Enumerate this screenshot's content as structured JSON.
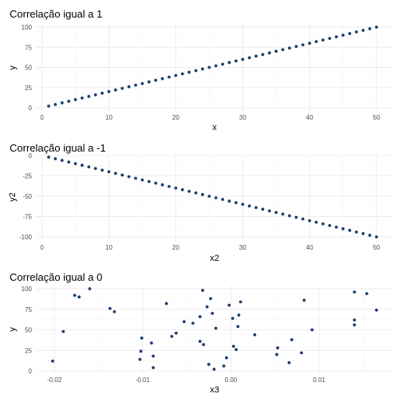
{
  "colors": {
    "point": "#1b3f6e",
    "grid_major": "#ebebeb",
    "grid_minor": "#f4f4f4"
  },
  "chart_data": [
    {
      "type": "scatter",
      "title": "Correlação igual a 1",
      "xlabel": "x",
      "ylabel": "y",
      "xlim": [
        1,
        50
      ],
      "ylim": [
        2,
        100
      ],
      "xticks": [
        0,
        10,
        20,
        30,
        40,
        50
      ],
      "yticks": [
        0,
        25,
        50,
        75,
        100
      ],
      "xtick_labels": [
        "0",
        "10",
        "20",
        "30",
        "40",
        "50"
      ],
      "ytick_labels": [
        "0",
        "25",
        "50",
        "75",
        "100"
      ],
      "grid": true,
      "series": [
        {
          "relation": "y = 2x",
          "x_from": 1,
          "x_to": 50,
          "step": 1,
          "slope": 2
        }
      ]
    },
    {
      "type": "scatter",
      "title": "Correlação igual a -1",
      "xlabel": "x2",
      "ylabel": "y2",
      "xlim": [
        1,
        50
      ],
      "ylim": [
        -100,
        -2
      ],
      "xticks": [
        0,
        10,
        20,
        30,
        40,
        50
      ],
      "yticks": [
        -100,
        -75,
        -50,
        -25,
        0
      ],
      "xtick_labels": [
        "0",
        "10",
        "20",
        "30",
        "40",
        "50"
      ],
      "ytick_labels": [
        "-100",
        "-75",
        "-50",
        "-25",
        "0"
      ],
      "grid": true,
      "series": [
        {
          "relation": "y2 = -2 * x2",
          "x_from": 1,
          "x_to": 50,
          "step": 1,
          "slope": -2
        }
      ]
    },
    {
      "type": "scatter",
      "title": "Correlação igual a 0",
      "xlabel": "x3",
      "ylabel": "y",
      "xlim": [
        -0.0202,
        0.0165
      ],
      "ylim": [
        2,
        100
      ],
      "xticks": [
        -0.02,
        -0.01,
        0.0,
        0.01
      ],
      "yticks": [
        0,
        25,
        50,
        75,
        100
      ],
      "xtick_labels": [
        "-0.02",
        "-0.01",
        "0.00",
        "0.01"
      ],
      "ytick_labels": [
        "0",
        "25",
        "50",
        "75",
        "100"
      ],
      "grid": true,
      "points": [
        [
          -0.0202,
          12
        ],
        [
          -0.019,
          48
        ],
        [
          -0.0177,
          92
        ],
        [
          -0.0172,
          90
        ],
        [
          -0.016,
          100
        ],
        [
          -0.0137,
          76
        ],
        [
          -0.0132,
          72
        ],
        [
          -0.0101,
          40
        ],
        [
          -0.0102,
          24
        ],
        [
          -0.0103,
          14
        ],
        [
          -0.009,
          34
        ],
        [
          -0.0088,
          18
        ],
        [
          -0.0088,
          4
        ],
        [
          -0.0073,
          82
        ],
        [
          -0.0067,
          42
        ],
        [
          -0.0062,
          46
        ],
        [
          -0.0053,
          60
        ],
        [
          -0.0043,
          58
        ],
        [
          -0.0035,
          36
        ],
        [
          -0.0035,
          66
        ],
        [
          -0.0032,
          98
        ],
        [
          -0.0031,
          32
        ],
        [
          -0.0027,
          78
        ],
        [
          -0.0025,
          8
        ],
        [
          -0.0023,
          88
        ],
        [
          -0.0021,
          70
        ],
        [
          -0.0019,
          2
        ],
        [
          -0.0017,
          52
        ],
        [
          -0.0008,
          6
        ],
        [
          -0.0005,
          16
        ],
        [
          -0.0002,
          80
        ],
        [
          0.0002,
          64
        ],
        [
          0.0003,
          30
        ],
        [
          0.0006,
          26
        ],
        [
          0.0008,
          54
        ],
        [
          0.0009,
          68
        ],
        [
          0.0011,
          84
        ],
        [
          0.0027,
          44
        ],
        [
          0.0052,
          20
        ],
        [
          0.0053,
          28
        ],
        [
          0.0066,
          10
        ],
        [
          0.0069,
          38
        ],
        [
          0.008,
          22
        ],
        [
          0.0083,
          86
        ],
        [
          0.0092,
          50
        ],
        [
          0.014,
          96
        ],
        [
          0.014,
          62
        ],
        [
          0.014,
          56
        ],
        [
          0.0154,
          94
        ],
        [
          0.0165,
          74
        ]
      ]
    }
  ]
}
